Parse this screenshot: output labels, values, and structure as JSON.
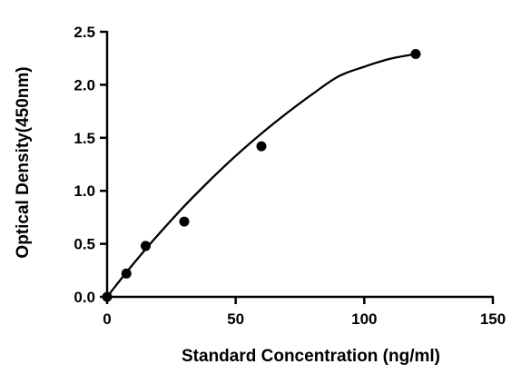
{
  "chart_data": {
    "type": "scatter",
    "title": "",
    "xlabel": "Standard Concentration (ng/ml)",
    "ylabel": "Optical Density(450nm)",
    "xlim": [
      0,
      150
    ],
    "ylim": [
      0,
      2.5
    ],
    "x_ticks": [
      "0",
      "50",
      "100",
      "150"
    ],
    "y_ticks": [
      "0.0",
      "0.5",
      "1.0",
      "1.5",
      "2.0",
      "2.5"
    ],
    "grid": false,
    "legend": "none",
    "series": [
      {
        "x": [
          0,
          7.5,
          15,
          30,
          60,
          120
        ],
        "y": [
          0.0,
          0.22,
          0.48,
          0.71,
          1.42,
          2.29
        ],
        "marker": "circle",
        "color": "#000000"
      }
    ],
    "fit_curve": {
      "type": "smooth curve",
      "x": [
        0,
        5,
        10,
        15,
        20,
        30,
        40,
        50,
        60,
        70,
        80,
        90,
        100,
        110,
        120
      ],
      "y": [
        0.0,
        0.155,
        0.305,
        0.45,
        0.59,
        0.855,
        1.1,
        1.33,
        1.54,
        1.735,
        1.915,
        2.08,
        2.17,
        2.245,
        2.29
      ],
      "color": "#000000"
    }
  }
}
